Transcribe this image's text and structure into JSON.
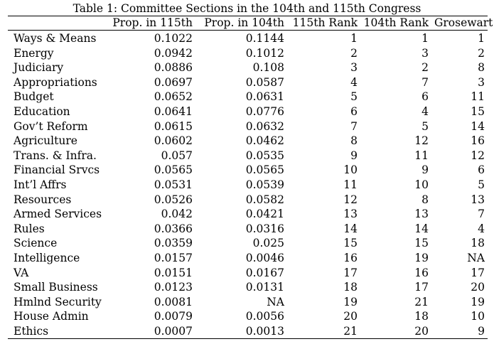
{
  "caption": "Table 1: Committee Sections in the 104th and 115th Congress",
  "columns": [
    "",
    "Prop. in 115th",
    "Prop. in 104th",
    "115th Rank",
    "104th Rank",
    "Grosewart"
  ],
  "rows": [
    {
      "name": "Ways & Means",
      "p115": "0.1022",
      "p104": "0.1144",
      "r115": "1",
      "r104": "1",
      "grose": "1"
    },
    {
      "name": "Energy",
      "p115": "0.0942",
      "p104": "0.1012",
      "r115": "2",
      "r104": "3",
      "grose": "2"
    },
    {
      "name": "Judiciary",
      "p115": "0.0886",
      "p104": "0.108",
      "r115": "3",
      "r104": "2",
      "grose": "8"
    },
    {
      "name": "Appropriations",
      "p115": "0.0697",
      "p104": "0.0587",
      "r115": "4",
      "r104": "7",
      "grose": "3"
    },
    {
      "name": "Budget",
      "p115": "0.0652",
      "p104": "0.0631",
      "r115": "5",
      "r104": "6",
      "grose": "11"
    },
    {
      "name": "Education",
      "p115": "0.0641",
      "p104": "0.0776",
      "r115": "6",
      "r104": "4",
      "grose": "15"
    },
    {
      "name": "Gov’t Reform",
      "p115": "0.0615",
      "p104": "0.0632",
      "r115": "7",
      "r104": "5",
      "grose": "14"
    },
    {
      "name": "Agriculture",
      "p115": "0.0602",
      "p104": "0.0462",
      "r115": "8",
      "r104": "12",
      "grose": "16"
    },
    {
      "name": "Trans. & Infra.",
      "p115": "0.057",
      "p104": "0.0535",
      "r115": "9",
      "r104": "11",
      "grose": "12"
    },
    {
      "name": "Financial Srvcs",
      "p115": "0.0565",
      "p104": "0.0565",
      "r115": "10",
      "r104": "9",
      "grose": "6"
    },
    {
      "name": "Int’l Affrs",
      "p115": "0.0531",
      "p104": "0.0539",
      "r115": "11",
      "r104": "10",
      "grose": "5"
    },
    {
      "name": "Resources",
      "p115": "0.0526",
      "p104": "0.0582",
      "r115": "12",
      "r104": "8",
      "grose": "13"
    },
    {
      "name": "Armed Services",
      "p115": "0.042",
      "p104": "0.0421",
      "r115": "13",
      "r104": "13",
      "grose": "7"
    },
    {
      "name": "Rules",
      "p115": "0.0366",
      "p104": "0.0316",
      "r115": "14",
      "r104": "14",
      "grose": "4"
    },
    {
      "name": "Science",
      "p115": "0.0359",
      "p104": "0.025",
      "r115": "15",
      "r104": "15",
      "grose": "18"
    },
    {
      "name": "Intelligence",
      "p115": "0.0157",
      "p104": "0.0046",
      "r115": "16",
      "r104": "19",
      "grose": "NA"
    },
    {
      "name": "VA",
      "p115": "0.0151",
      "p104": "0.0167",
      "r115": "17",
      "r104": "16",
      "grose": "17"
    },
    {
      "name": "Small Business",
      "p115": "0.0123",
      "p104": "0.0131",
      "r115": "18",
      "r104": "17",
      "grose": "20"
    },
    {
      "name": "Hmlnd Security",
      "p115": "0.0081",
      "p104": "NA",
      "r115": "19",
      "r104": "21",
      "grose": "19"
    },
    {
      "name": "House Admin",
      "p115": "0.0079",
      "p104": "0.0056",
      "r115": "20",
      "r104": "18",
      "grose": "10"
    },
    {
      "name": "Ethics",
      "p115": "0.0007",
      "p104": "0.0013",
      "r115": "21",
      "r104": "20",
      "grose": "9"
    }
  ]
}
